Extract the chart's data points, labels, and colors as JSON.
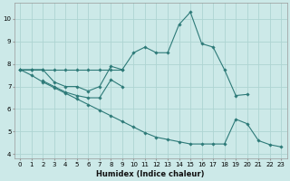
{
  "xlabel": "Humidex (Indice chaleur)",
  "bg_color": "#cce9e8",
  "line_color": "#2d7a78",
  "grid_color": "#aed4d2",
  "xlim": [
    -0.5,
    23.5
  ],
  "ylim": [
    3.8,
    10.7
  ],
  "xticks": [
    0,
    1,
    2,
    3,
    4,
    5,
    6,
    7,
    8,
    9,
    10,
    11,
    12,
    13,
    14,
    15,
    16,
    17,
    18,
    19,
    20,
    21,
    22,
    23
  ],
  "yticks": [
    4,
    5,
    6,
    7,
    8,
    9,
    10
  ],
  "lines": [
    {
      "x": [
        0,
        1,
        2,
        3,
        4,
        5,
        6,
        7,
        8,
        9,
        10,
        11,
        12,
        13,
        14,
        15,
        16,
        17,
        18,
        19,
        20
      ],
      "y": [
        7.75,
        7.75,
        7.75,
        7.2,
        7.0,
        7.0,
        6.8,
        7.0,
        7.9,
        7.75,
        8.5,
        8.75,
        8.5,
        8.5,
        9.75,
        10.3,
        8.9,
        8.75,
        7.75,
        6.6,
        6.65
      ]
    },
    {
      "x": [
        2,
        3,
        4,
        5,
        6,
        7,
        8,
        9
      ],
      "y": [
        7.25,
        7.0,
        6.75,
        6.6,
        6.5,
        6.5,
        7.3,
        7.0
      ]
    },
    {
      "x": [
        0,
        1,
        2,
        3,
        4,
        5,
        6,
        7,
        8,
        9
      ],
      "y": [
        7.75,
        7.75,
        7.75,
        7.75,
        7.75,
        7.75,
        7.75,
        7.75,
        7.75,
        7.75
      ]
    },
    {
      "x": [
        0,
        1,
        2,
        3,
        4,
        5,
        6,
        7,
        8,
        9,
        10,
        11,
        12,
        13,
        14,
        15,
        16,
        17,
        18,
        19,
        20,
        21,
        22,
        23
      ],
      "y": [
        7.75,
        7.5,
        7.2,
        6.95,
        6.7,
        6.45,
        6.2,
        5.95,
        5.7,
        5.45,
        5.2,
        4.95,
        4.75,
        4.65,
        4.55,
        4.45,
        4.45,
        4.45,
        4.45,
        5.55,
        5.35,
        4.6,
        4.42,
        4.32
      ]
    }
  ]
}
